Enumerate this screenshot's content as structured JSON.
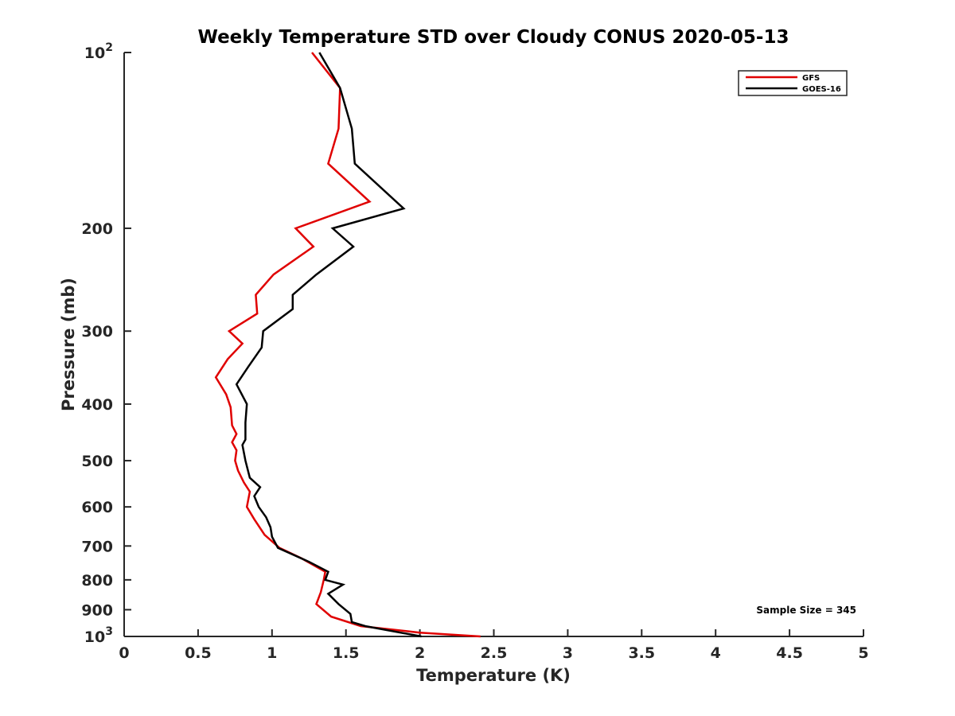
{
  "chart_data": {
    "type": "line",
    "title": "Weekly Temperature STD over Cloudy CONUS 2020-05-13",
    "xlabel": "Temperature (K)",
    "ylabel": "Pressure (mb)",
    "xlim": [
      0,
      5
    ],
    "ylim": [
      100,
      1000
    ],
    "y_scale": "log",
    "y_reversed": true,
    "grid": false,
    "legend_position": "top-right",
    "x_ticks": [
      {
        "value": 0,
        "label": "0"
      },
      {
        "value": 0.5,
        "label": "0.5"
      },
      {
        "value": 1,
        "label": "1"
      },
      {
        "value": 1.5,
        "label": "1.5"
      },
      {
        "value": 2,
        "label": "2"
      },
      {
        "value": 2.5,
        "label": "2.5"
      },
      {
        "value": 3,
        "label": "3"
      },
      {
        "value": 3.5,
        "label": "3.5"
      },
      {
        "value": 4,
        "label": "4"
      },
      {
        "value": 4.5,
        "label": "4.5"
      },
      {
        "value": 5,
        "label": "5"
      }
    ],
    "y_ticks": [
      {
        "value": 100,
        "base": "10",
        "exp": "2"
      },
      {
        "value": 200,
        "base": "200",
        "exp": ""
      },
      {
        "value": 300,
        "base": "300",
        "exp": ""
      },
      {
        "value": 400,
        "base": "400",
        "exp": ""
      },
      {
        "value": 500,
        "base": "500",
        "exp": ""
      },
      {
        "value": 600,
        "base": "600",
        "exp": ""
      },
      {
        "value": 700,
        "base": "700",
        "exp": ""
      },
      {
        "value": 800,
        "base": "800",
        "exp": ""
      },
      {
        "value": 900,
        "base": "900",
        "exp": ""
      },
      {
        "value": 1000,
        "base": "10",
        "exp": "3"
      }
    ],
    "series": [
      {
        "name": "GFS",
        "color": "#e00000",
        "points": [
          [
            1.27,
            100
          ],
          [
            1.46,
            115
          ],
          [
            1.45,
            135
          ],
          [
            1.38,
            155
          ],
          [
            1.66,
            180
          ],
          [
            1.16,
            200
          ],
          [
            1.28,
            215
          ],
          [
            1.01,
            240
          ],
          [
            0.89,
            260
          ],
          [
            0.9,
            280
          ],
          [
            0.71,
            300
          ],
          [
            0.8,
            315
          ],
          [
            0.7,
            335
          ],
          [
            0.62,
            360
          ],
          [
            0.69,
            385
          ],
          [
            0.72,
            405
          ],
          [
            0.73,
            435
          ],
          [
            0.76,
            450
          ],
          [
            0.73,
            465
          ],
          [
            0.76,
            480
          ],
          [
            0.75,
            500
          ],
          [
            0.77,
            520
          ],
          [
            0.81,
            545
          ],
          [
            0.85,
            565
          ],
          [
            0.83,
            600
          ],
          [
            0.88,
            630
          ],
          [
            0.95,
            670
          ],
          [
            1.05,
            705
          ],
          [
            1.2,
            735
          ],
          [
            1.36,
            775
          ],
          [
            1.35,
            800
          ],
          [
            1.33,
            840
          ],
          [
            1.3,
            880
          ],
          [
            1.4,
            925
          ],
          [
            1.6,
            960
          ],
          [
            2.0,
            985
          ],
          [
            2.41,
            1000
          ]
        ]
      },
      {
        "name": "GOES-16",
        "color": "#000000",
        "points": [
          [
            1.32,
            100
          ],
          [
            1.46,
            115
          ],
          [
            1.54,
            135
          ],
          [
            1.56,
            155
          ],
          [
            1.89,
            185
          ],
          [
            1.41,
            200
          ],
          [
            1.55,
            215
          ],
          [
            1.3,
            240
          ],
          [
            1.14,
            260
          ],
          [
            1.14,
            275
          ],
          [
            0.94,
            300
          ],
          [
            0.93,
            320
          ],
          [
            0.84,
            345
          ],
          [
            0.76,
            370
          ],
          [
            0.83,
            400
          ],
          [
            0.82,
            430
          ],
          [
            0.82,
            460
          ],
          [
            0.8,
            470
          ],
          [
            0.82,
            500
          ],
          [
            0.85,
            535
          ],
          [
            0.92,
            555
          ],
          [
            0.88,
            575
          ],
          [
            0.91,
            600
          ],
          [
            0.96,
            625
          ],
          [
            0.99,
            650
          ],
          [
            1.0,
            675
          ],
          [
            1.04,
            705
          ],
          [
            1.25,
            745
          ],
          [
            1.38,
            775
          ],
          [
            1.36,
            800
          ],
          [
            1.48,
            815
          ],
          [
            1.38,
            845
          ],
          [
            1.45,
            880
          ],
          [
            1.53,
            915
          ],
          [
            1.54,
            945
          ],
          [
            1.63,
            960
          ],
          [
            2.01,
            1000
          ]
        ]
      }
    ],
    "annotations": [
      {
        "text": "Sample Size = 345",
        "position": "bottom-right"
      }
    ]
  }
}
